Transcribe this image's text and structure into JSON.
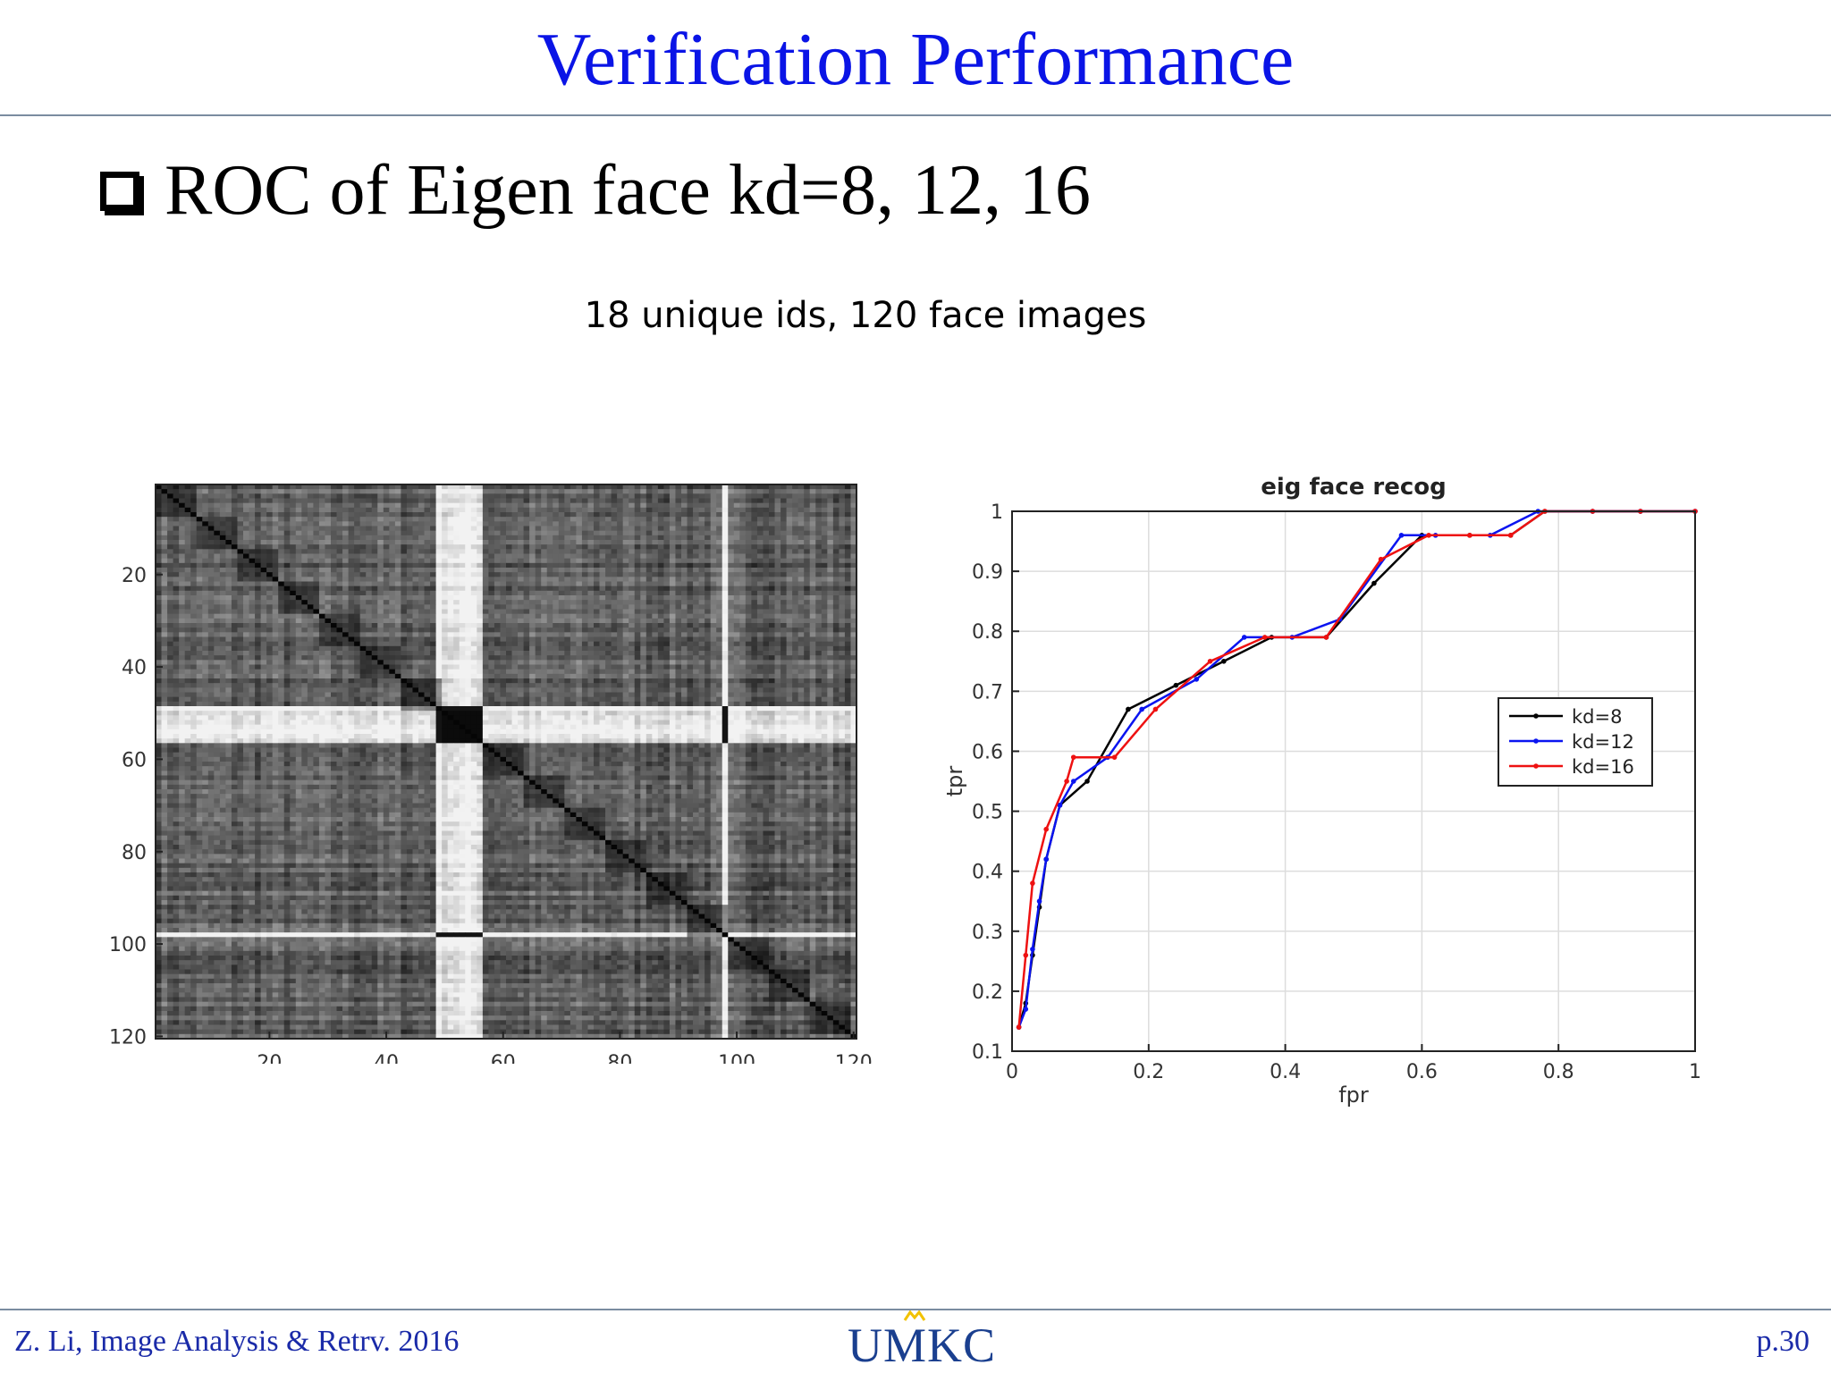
{
  "slide": {
    "title": "Verification Performance",
    "bullet": "ROC of Eigen face kd=8, 12, 16",
    "subtitle": "18 unique ids, 120 face images",
    "footer_left": "Z. Li, Image Analysis & Retrv. 2016",
    "footer_logo": "UMKC",
    "footer_page": "p.30",
    "title_color": "#0a14e6",
    "footer_color": "#1a2aa8"
  },
  "chart_data": [
    {
      "type": "heatmap",
      "rows": 120,
      "cols": 120,
      "colormap": "gray",
      "x_ticks": [
        "20",
        "40",
        "60",
        "80",
        "100",
        "120"
      ],
      "y_ticks": [
        "20",
        "40",
        "60",
        "80",
        "100",
        "120"
      ],
      "x_tick_values": [
        20,
        40,
        60,
        80,
        100,
        120
      ],
      "y_tick_values": [
        20,
        40,
        60,
        80,
        100,
        120
      ],
      "xlim": [
        0.5,
        120.5
      ],
      "ylim": [
        0.5,
        120.5
      ],
      "diagonal": "dark (zero distance)",
      "bright_bands": [
        [
          49,
          56
        ],
        [
          98,
          98
        ]
      ]
    },
    {
      "type": "line",
      "title": "eig face recog",
      "xlabel": "fpr",
      "ylabel": "tpr",
      "xlim": [
        0,
        1
      ],
      "ylim": [
        0.1,
        1
      ],
      "x_ticks": [
        "0",
        "0.2",
        "0.4",
        "0.6",
        "0.8",
        "1"
      ],
      "y_ticks": [
        "0.1",
        "0.2",
        "0.3",
        "0.4",
        "0.5",
        "0.6",
        "0.7",
        "0.8",
        "0.9",
        "1"
      ],
      "x_tick_values": [
        0,
        0.2,
        0.4,
        0.6,
        0.8,
        1
      ],
      "y_tick_values": [
        0.1,
        0.2,
        0.3,
        0.4,
        0.5,
        0.6,
        0.7,
        0.8,
        0.9,
        1
      ],
      "grid": true,
      "legend": "right-middle",
      "series": [
        {
          "name": "kd=8",
          "color": "#000000",
          "x": [
            0.01,
            0.02,
            0.03,
            0.04,
            0.05,
            0.07,
            0.11,
            0.17,
            0.24,
            0.31,
            0.38,
            0.46,
            0.53,
            0.6,
            0.67,
            0.73,
            0.78,
            0.85,
            0.92,
            1.0
          ],
          "y": [
            0.14,
            0.18,
            0.26,
            0.34,
            0.42,
            0.51,
            0.55,
            0.67,
            0.71,
            0.75,
            0.79,
            0.79,
            0.88,
            0.96,
            0.96,
            0.96,
            1.0,
            1.0,
            1.0,
            1.0
          ]
        },
        {
          "name": "kd=12",
          "color": "#0a14f0",
          "x": [
            0.01,
            0.02,
            0.03,
            0.04,
            0.05,
            0.07,
            0.09,
            0.14,
            0.19,
            0.27,
            0.34,
            0.41,
            0.48,
            0.57,
            0.62,
            0.7,
            0.77,
            0.85,
            0.92,
            1.0
          ],
          "y": [
            0.14,
            0.17,
            0.27,
            0.35,
            0.42,
            0.51,
            0.55,
            0.59,
            0.67,
            0.72,
            0.79,
            0.79,
            0.82,
            0.96,
            0.96,
            0.96,
            1.0,
            1.0,
            1.0,
            1.0
          ]
        },
        {
          "name": "kd=16",
          "color": "#ee1111",
          "x": [
            0.01,
            0.02,
            0.03,
            0.05,
            0.08,
            0.09,
            0.15,
            0.21,
            0.29,
            0.37,
            0.46,
            0.54,
            0.61,
            0.67,
            0.73,
            0.78,
            0.85,
            0.92,
            1.0
          ],
          "y": [
            0.14,
            0.26,
            0.38,
            0.47,
            0.55,
            0.59,
            0.59,
            0.67,
            0.75,
            0.79,
            0.79,
            0.92,
            0.96,
            0.96,
            0.96,
            1.0,
            1.0,
            1.0,
            1.0
          ]
        }
      ]
    }
  ]
}
